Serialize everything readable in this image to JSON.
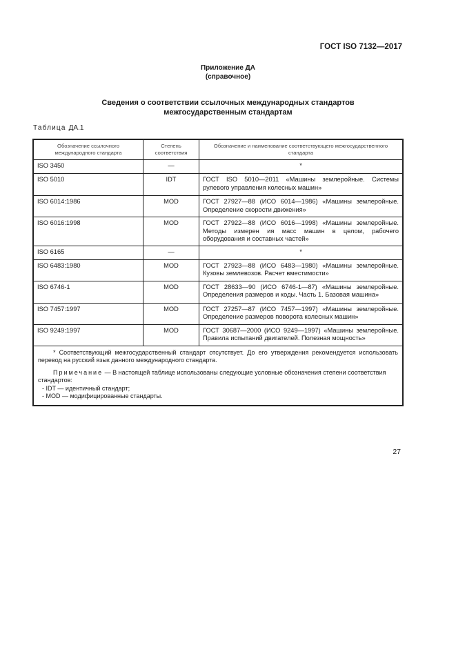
{
  "header": {
    "doc_code": "ГОСТ ISO 7132—2017"
  },
  "appendix": {
    "title": "Приложение ДА",
    "subtitle": "(справочное)"
  },
  "heading": {
    "line1": "Сведения о соответствии ссылочных международных стандартов",
    "line2": "межгосударственным стандартам"
  },
  "table": {
    "label": "Таблица",
    "label_number": "ДА.1",
    "columns": [
      "Обозначение ссылочного международного стандарта",
      "Степень соответствия",
      "Обозначение и наименование соответствующего межгосударственного стандарта"
    ],
    "rows": [
      {
        "intl": "ISO 3450",
        "degree": "—",
        "gost": "*"
      },
      {
        "intl": "ISO 5010",
        "degree": "IDT",
        "gost": "ГОСТ ISO 5010—2011 «Машины землеройные. Системы рулевого управления колесных машин»"
      },
      {
        "intl": "ISO 6014:1986",
        "degree": "MOD",
        "gost": "ГОСТ 27927—88 (ИСО 6014—1986) «Машины землеройные. Определение скорости движения»"
      },
      {
        "intl": "ISO 6016:1998",
        "degree": "MOD",
        "gost": "ГОСТ 27922—88 (ИСО 6016—1998) «Машины землеройные. Методы измерен ия масс машин в целом, рабочего оборудования и составных частей»"
      },
      {
        "intl": "ISO 6165",
        "degree": "—",
        "gost": "*"
      },
      {
        "intl": "ISO 6483:1980",
        "degree": "MOD",
        "gost": "ГОСТ 27923—88 (ИСО 6483—1980) «Машины землеройные. Кузовы землевозов. Расчет вместимости»"
      },
      {
        "intl": "ISO 6746-1",
        "degree": "MOD",
        "gost": "ГОСТ 28633—90 (ИСО 6746-1—87) «Машины землеройные. Определения размеров и коды. Часть 1. Базовая машина»"
      },
      {
        "intl": "ISO 7457:1997",
        "degree": "MOD",
        "gost": "ГОСТ 27257—87 (ИСО 7457—1997) «Машины землеройные. Определение размеров поворота колесных машин»"
      },
      {
        "intl": "ISO 9249:1997",
        "degree": "MOD",
        "gost": "ГОСТ 30687—2000 (ИСО 9249—1997) «Машины землеройные. Правила испытаний двигателей. Полезная мощность»"
      }
    ],
    "footnote": "* Соответствующий межгосударственный стандарт отсутствует. До его утверждения рекомендуется использовать перевод на русский язык данного международного стандарта.",
    "note_label": "Примечание",
    "note_text": "— В настоящей таблице использованы следующие условные обозначения степени соответствия стандартов:",
    "note_items": [
      "- IDT — идентичный стандарт;",
      "- MOD — модифицированные стандарты."
    ]
  },
  "page_number": "27"
}
